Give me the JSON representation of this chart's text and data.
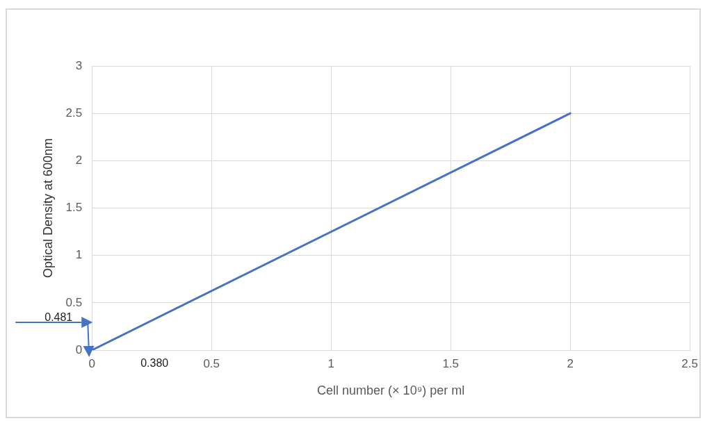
{
  "chart_data": {
    "type": "line",
    "xlabel": "Cell number (× 10⁹) per ml",
    "ylabel": "Optical Density at 600nm",
    "x": [
      0,
      2
    ],
    "values": [
      0,
      2.5
    ],
    "color": "#4472c4",
    "xlim": [
      0,
      2.5
    ],
    "xticks": [
      0,
      0.5,
      1,
      1.5,
      2,
      2.5
    ],
    "ylim": [
      0,
      3
    ],
    "yticks": [
      0,
      0.5,
      1,
      1.5,
      2,
      2.5,
      3
    ],
    "grid": true,
    "legend": false,
    "marker": "none",
    "line_style": "solid",
    "annotations": [
      "0.481",
      "0.380"
    ]
  }
}
